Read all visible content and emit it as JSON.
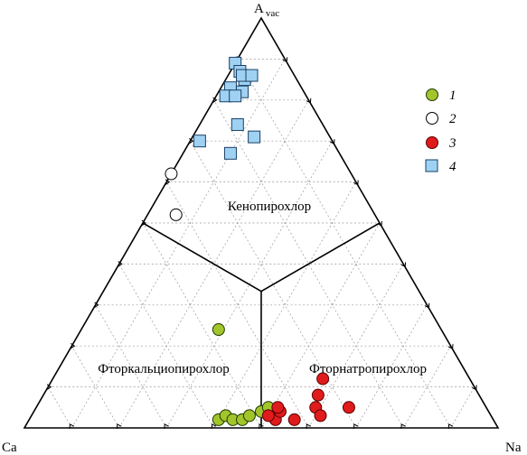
{
  "chart_data": {
    "type": "ternary-scatter",
    "vertices": {
      "top": {
        "main": "A",
        "sub": "vac"
      },
      "left": {
        "main": "Ca"
      },
      "right": {
        "main": "Na"
      }
    },
    "regions": [
      "Кенопирохлор",
      "Фторкальциопирохлор",
      "Фторнатропирохлор"
    ],
    "grid_step": 0.1,
    "legend": [
      "1",
      "2",
      "3",
      "4"
    ],
    "styles": {
      "1": {
        "shape": "circle",
        "fill": "#a3c52c",
        "stroke": "#1e3a00"
      },
      "2": {
        "shape": "circle",
        "fill": "#ffffff",
        "stroke": "#000000"
      },
      "3": {
        "shape": "circle",
        "fill": "#e01b1b",
        "stroke": "#5a0000"
      },
      "4": {
        "shape": "square",
        "fill": "#9fd2f2",
        "stroke": "#1a3f66"
      }
    },
    "boundaries": [
      {
        "from": {
          "a": 0.3333,
          "ca": 0.3333,
          "na": 0.3333
        },
        "to": {
          "a": 0.5,
          "ca": 0.5,
          "na": 0.0
        }
      },
      {
        "from": {
          "a": 0.3333,
          "ca": 0.3333,
          "na": 0.3333
        },
        "to": {
          "a": 0.5,
          "ca": 0.0,
          "na": 0.5
        }
      },
      {
        "from": {
          "a": 0.3333,
          "ca": 0.3333,
          "na": 0.3333
        },
        "to": {
          "a": 0.0,
          "ca": 0.5,
          "na": 0.5
        }
      }
    ],
    "series": [
      {
        "group": "1",
        "points": [
          {
            "a": 0.24,
            "na": 0.29
          },
          {
            "a": 0.02,
            "na": 0.4
          },
          {
            "a": 0.03,
            "na": 0.41
          },
          {
            "a": 0.02,
            "na": 0.43
          },
          {
            "a": 0.02,
            "na": 0.45
          },
          {
            "a": 0.03,
            "na": 0.46
          },
          {
            "a": 0.04,
            "na": 0.48
          },
          {
            "a": 0.05,
            "na": 0.49
          }
        ]
      },
      {
        "group": "2",
        "points": [
          {
            "a": 0.62,
            "na": 0.0
          },
          {
            "a": 0.52,
            "na": 0.06
          }
        ]
      },
      {
        "group": "3",
        "points": [
          {
            "a": 0.12,
            "na": 0.57
          },
          {
            "a": 0.08,
            "na": 0.58
          },
          {
            "a": 0.05,
            "na": 0.59
          },
          {
            "a": 0.03,
            "na": 0.61
          },
          {
            "a": 0.02,
            "na": 0.56
          },
          {
            "a": 0.02,
            "na": 0.52
          },
          {
            "a": 0.04,
            "na": 0.52
          },
          {
            "a": 0.03,
            "na": 0.5
          },
          {
            "a": 0.05,
            "na": 0.51
          },
          {
            "a": 0.05,
            "na": 0.66
          }
        ]
      },
      {
        "group": "4",
        "points": [
          {
            "a": 0.89,
            "na": 0.0
          },
          {
            "a": 0.87,
            "na": 0.02
          },
          {
            "a": 0.85,
            "na": 0.04
          },
          {
            "a": 0.86,
            "na": 0.03
          },
          {
            "a": 0.83,
            "na": 0.02
          },
          {
            "a": 0.81,
            "na": 0.02
          },
          {
            "a": 0.86,
            "na": 0.05
          },
          {
            "a": 0.82,
            "na": 0.05
          },
          {
            "a": 0.81,
            "na": 0.04
          },
          {
            "a": 0.7,
            "na": 0.02
          },
          {
            "a": 0.74,
            "na": 0.08
          },
          {
            "a": 0.67,
            "na": 0.1
          },
          {
            "a": 0.71,
            "na": 0.13
          }
        ]
      }
    ]
  }
}
